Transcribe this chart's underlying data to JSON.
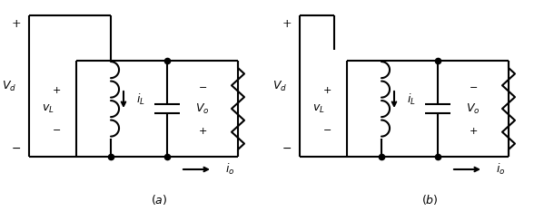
{
  "lw": 1.5,
  "lc": "#000000",
  "bg": "#ffffff",
  "dot_ms": 4.5,
  "fig_w": 6.1,
  "fig_h": 2.44,
  "dpi": 100
}
